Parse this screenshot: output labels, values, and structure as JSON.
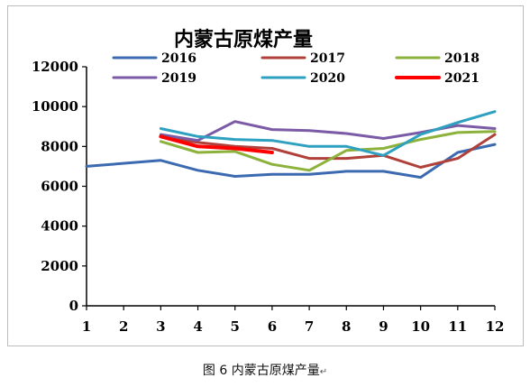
{
  "caption": "图 6  内蒙古原煤产量",
  "caption_mark": "↵",
  "corner_mark": "↵",
  "chart_data": {
    "type": "line",
    "title": "内蒙古原煤产量",
    "xlabel": "",
    "ylabel": "",
    "x": [
      1,
      2,
      3,
      4,
      5,
      6,
      7,
      8,
      9,
      10,
      11,
      12
    ],
    "x_tick_labels": [
      "1",
      "2",
      "3",
      "4",
      "5",
      "6",
      "7",
      "8",
      "9",
      "10",
      "11",
      "12"
    ],
    "y_ticks": [
      0,
      2000,
      4000,
      6000,
      8000,
      10000,
      12000
    ],
    "y_tick_labels": [
      "0",
      "2000",
      "4000",
      "6000",
      "8000",
      "10000",
      "12000"
    ],
    "ylim": [
      0,
      12000
    ],
    "xlim": [
      1,
      12
    ],
    "grid": false,
    "legend_position": "top",
    "series": [
      {
        "name": "2016",
        "color": "#3c6ab0",
        "x": [
          1,
          3,
          4,
          5,
          6,
          7,
          8,
          9,
          10,
          11,
          12
        ],
        "values": [
          7000,
          7300,
          6800,
          6500,
          6600,
          6600,
          6750,
          6750,
          6450,
          7700,
          8100
        ]
      },
      {
        "name": "2017",
        "color": "#b0403a",
        "x": [
          3,
          4,
          5,
          6,
          7,
          8,
          9,
          10,
          11,
          12
        ],
        "values": [
          8500,
          8200,
          8000,
          7900,
          7400,
          7400,
          7550,
          6950,
          7400,
          8600
        ]
      },
      {
        "name": "2018",
        "color": "#8db23c",
        "x": [
          3,
          4,
          5,
          6,
          7,
          8,
          9,
          10,
          11,
          12
        ],
        "values": [
          8250,
          7700,
          7750,
          7100,
          6800,
          7800,
          7900,
          8350,
          8700,
          8750
        ]
      },
      {
        "name": "2019",
        "color": "#7b5ba5",
        "x": [
          3,
          4,
          5,
          6,
          7,
          8,
          9,
          10,
          11,
          12
        ],
        "values": [
          8600,
          8300,
          9250,
          8850,
          8800,
          8650,
          8400,
          8700,
          9050,
          8900
        ]
      },
      {
        "name": "2020",
        "color": "#2ea0c0",
        "x": [
          3,
          4,
          5,
          6,
          7,
          8,
          9,
          10,
          11,
          12
        ],
        "values": [
          8900,
          8500,
          8350,
          8300,
          8000,
          8000,
          7550,
          8600,
          9200,
          9750
        ]
      },
      {
        "name": "2021",
        "color": "#ff0000",
        "x": [
          3,
          4,
          5,
          6
        ],
        "values": [
          8500,
          8000,
          7900,
          7700
        ]
      }
    ]
  }
}
